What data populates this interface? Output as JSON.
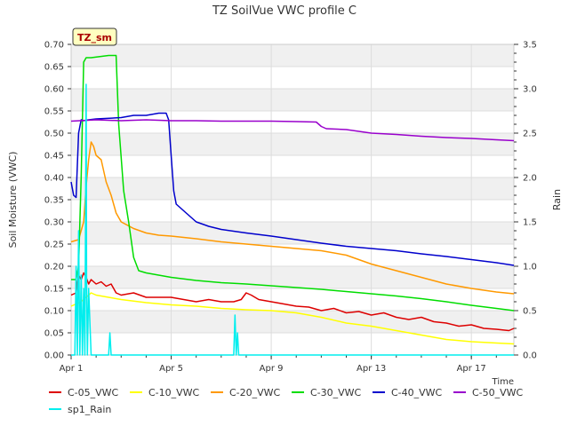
{
  "chart_data": {
    "type": "line",
    "title": "TZ SoilVue VWC profile C",
    "badge": "TZ_sm",
    "xlabel": "Time",
    "ylabel": "Soil Moisture (VWC)",
    "y2label": "Rain",
    "ylim": [
      0.0,
      0.7
    ],
    "y2lim": [
      0.0,
      3.5
    ],
    "xlim": [
      0.0,
      17.7
    ],
    "x_unit": "days since Apr 1",
    "x_ticks": [
      {
        "x": 0,
        "label": "Apr 1"
      },
      {
        "x": 4,
        "label": "Apr 5"
      },
      {
        "x": 8,
        "label": "Apr 9"
      },
      {
        "x": 12,
        "label": "Apr 13"
      },
      {
        "x": 16,
        "label": "Apr 17"
      }
    ],
    "y_ticks": [
      "0.00",
      "0.05",
      "0.10",
      "0.15",
      "0.20",
      "0.25",
      "0.30",
      "0.35",
      "0.40",
      "0.45",
      "0.50",
      "0.55",
      "0.60",
      "0.65",
      "0.70"
    ],
    "y2_ticks": [
      "0.0",
      "0.5",
      "1.0",
      "1.5",
      "2.0",
      "2.5",
      "3.0",
      "3.5"
    ],
    "grid": true,
    "legend_position": "bottom",
    "series": [
      {
        "name": "C-05_VWC",
        "color": "#dd0000",
        "axis": "left",
        "x": [
          0,
          0.2,
          0.3,
          0.4,
          0.5,
          0.6,
          0.7,
          0.8,
          1.0,
          1.2,
          1.4,
          1.6,
          1.8,
          2.0,
          2.5,
          3.0,
          3.5,
          4.0,
          4.5,
          5.0,
          5.5,
          6.0,
          6.5,
          6.8,
          7.0,
          7.2,
          7.5,
          8.0,
          8.5,
          9.0,
          9.5,
          10.0,
          10.5,
          11.0,
          11.5,
          12.0,
          12.5,
          13.0,
          13.5,
          14.0,
          14.5,
          15.0,
          15.5,
          16.0,
          16.5,
          17.0,
          17.5,
          17.7
        ],
        "y": [
          0.135,
          0.14,
          0.18,
          0.17,
          0.185,
          0.175,
          0.16,
          0.17,
          0.16,
          0.165,
          0.155,
          0.16,
          0.14,
          0.135,
          0.14,
          0.13,
          0.13,
          0.13,
          0.125,
          0.12,
          0.125,
          0.12,
          0.12,
          0.125,
          0.14,
          0.135,
          0.125,
          0.12,
          0.115,
          0.11,
          0.108,
          0.1,
          0.105,
          0.095,
          0.098,
          0.09,
          0.095,
          0.085,
          0.08,
          0.085,
          0.075,
          0.072,
          0.065,
          0.068,
          0.06,
          0.058,
          0.055,
          0.06
        ]
      },
      {
        "name": "C-10_VWC",
        "color": "#ffff00",
        "axis": "left",
        "x": [
          0,
          0.2,
          0.4,
          0.6,
          0.8,
          1.0,
          1.5,
          2.0,
          3.0,
          4.0,
          5.0,
          6.0,
          7.0,
          8.0,
          9.0,
          10.0,
          11.0,
          12.0,
          13.0,
          14.0,
          15.0,
          16.0,
          17.0,
          17.7
        ],
        "y": [
          0.11,
          0.115,
          0.12,
          0.13,
          0.14,
          0.135,
          0.13,
          0.125,
          0.118,
          0.113,
          0.11,
          0.105,
          0.102,
          0.1,
          0.095,
          0.085,
          0.072,
          0.065,
          0.055,
          0.045,
          0.035,
          0.03,
          0.027,
          0.025
        ]
      },
      {
        "name": "C-20_VWC",
        "color": "#ff9900",
        "axis": "left",
        "x": [
          0,
          0.3,
          0.5,
          0.6,
          0.7,
          0.8,
          0.9,
          1.0,
          1.2,
          1.4,
          1.6,
          1.8,
          2.0,
          2.5,
          3.0,
          3.5,
          4.0,
          5.0,
          6.0,
          7.0,
          8.0,
          9.0,
          10.0,
          11.0,
          12.0,
          13.0,
          14.0,
          15.0,
          16.0,
          17.0,
          17.7
        ],
        "y": [
          0.255,
          0.26,
          0.3,
          0.38,
          0.44,
          0.48,
          0.47,
          0.45,
          0.44,
          0.39,
          0.36,
          0.32,
          0.3,
          0.285,
          0.275,
          0.27,
          0.268,
          0.262,
          0.255,
          0.25,
          0.245,
          0.24,
          0.235,
          0.225,
          0.205,
          0.19,
          0.175,
          0.16,
          0.15,
          0.142,
          0.138
        ]
      },
      {
        "name": "C-30_VWC",
        "color": "#00dd00",
        "axis": "left",
        "x": [
          0,
          0.2,
          0.3,
          0.4,
          0.5,
          0.6,
          0.8,
          1.5,
          1.8,
          1.9,
          2.1,
          2.3,
          2.5,
          2.7,
          3.0,
          4.0,
          5.0,
          6.0,
          7.0,
          8.0,
          9.0,
          10.0,
          11.0,
          12.0,
          13.0,
          14.0,
          15.0,
          16.0,
          17.0,
          17.7
        ],
        "y": [
          0.17,
          0.17,
          0.2,
          0.4,
          0.66,
          0.67,
          0.67,
          0.675,
          0.675,
          0.52,
          0.37,
          0.3,
          0.22,
          0.19,
          0.185,
          0.175,
          0.168,
          0.163,
          0.16,
          0.156,
          0.152,
          0.148,
          0.143,
          0.138,
          0.133,
          0.127,
          0.12,
          0.112,
          0.105,
          0.1
        ]
      },
      {
        "name": "C-40_VWC",
        "color": "#0000cc",
        "axis": "left",
        "x": [
          0,
          0.1,
          0.2,
          0.3,
          0.4,
          0.5,
          0.7,
          1.0,
          2.0,
          2.5,
          3.0,
          3.5,
          3.8,
          3.9,
          4.0,
          4.1,
          4.2,
          4.4,
          4.6,
          5.0,
          5.5,
          6.0,
          7.0,
          8.0,
          9.0,
          10.0,
          11.0,
          12.0,
          13.0,
          14.0,
          15.0,
          16.0,
          17.0,
          17.7
        ],
        "y": [
          0.39,
          0.36,
          0.355,
          0.5,
          0.53,
          0.528,
          0.53,
          0.532,
          0.535,
          0.54,
          0.54,
          0.545,
          0.545,
          0.53,
          0.45,
          0.37,
          0.34,
          0.33,
          0.32,
          0.3,
          0.29,
          0.283,
          0.275,
          0.268,
          0.26,
          0.252,
          0.245,
          0.24,
          0.235,
          0.228,
          0.222,
          0.215,
          0.208,
          0.202
        ]
      },
      {
        "name": "C-50_VWC",
        "color": "#9900cc",
        "axis": "left",
        "x": [
          0,
          1.0,
          2.0,
          3.0,
          4.0,
          5.0,
          6.0,
          7.0,
          8.0,
          9.0,
          9.8,
          10.0,
          10.2,
          11.0,
          12.0,
          13.0,
          14.0,
          15.0,
          16.0,
          17.0,
          17.7
        ],
        "y": [
          0.527,
          0.53,
          0.528,
          0.53,
          0.528,
          0.528,
          0.527,
          0.527,
          0.527,
          0.526,
          0.525,
          0.515,
          0.51,
          0.508,
          0.5,
          0.497,
          0.493,
          0.49,
          0.488,
          0.485,
          0.483
        ]
      },
      {
        "name": "sp1_Rain",
        "color": "#00eeee",
        "axis": "right",
        "x": [
          0,
          0.15,
          0.2,
          0.25,
          0.3,
          0.35,
          0.4,
          0.45,
          0.5,
          0.55,
          0.6,
          0.62,
          0.65,
          0.7,
          0.8,
          0.9,
          1.0,
          1.1,
          1.5,
          1.55,
          1.6,
          2.0,
          6.5,
          6.55,
          6.6,
          6.65,
          6.7,
          6.75,
          6.8,
          17.7
        ],
        "y": [
          0,
          0,
          1.0,
          0,
          1.4,
          0,
          0.9,
          0,
          0.75,
          0,
          3.05,
          0.8,
          0,
          0.75,
          0,
          0,
          0,
          0,
          0,
          0.25,
          0,
          0,
          0,
          0.45,
          0,
          0.25,
          0,
          0,
          0,
          0
        ]
      }
    ]
  }
}
